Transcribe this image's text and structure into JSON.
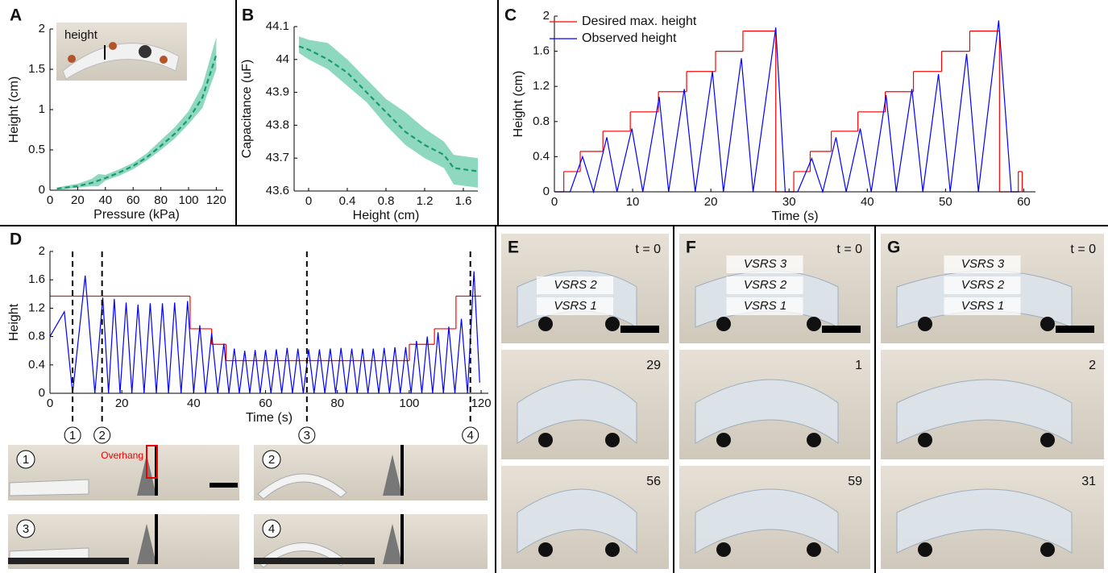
{
  "chart_data": [
    {
      "type": "line",
      "panel": "A",
      "xlabel": "Pressure (kPa)",
      "ylabel": "Height (cm)",
      "inset_label": "height",
      "xlim": [
        0,
        125
      ],
      "xticks": [
        0,
        20,
        40,
        60,
        80,
        100,
        120
      ],
      "ylim": [
        0,
        2
      ],
      "yticks": [
        0,
        0.5,
        1,
        1.5,
        2
      ],
      "x": [
        5,
        10,
        20,
        30,
        35,
        40,
        50,
        60,
        70,
        80,
        90,
        100,
        110,
        120
      ],
      "series": [
        {
          "color": "#1a9a6c",
          "dash": true,
          "values": [
            0.02,
            0.03,
            0.05,
            0.09,
            0.12,
            0.15,
            0.22,
            0.3,
            0.41,
            0.55,
            0.7,
            0.88,
            1.15,
            1.68
          ]
        }
      ],
      "band": {
        "color": "#8fd8c0",
        "lower": [
          0.01,
          0.01,
          0.03,
          0.05,
          0.05,
          0.12,
          0.18,
          0.26,
          0.37,
          0.5,
          0.64,
          0.82,
          1.02,
          1.5
        ],
        "upper": [
          0.03,
          0.05,
          0.08,
          0.14,
          0.2,
          0.19,
          0.26,
          0.34,
          0.46,
          0.62,
          0.78,
          0.98,
          1.3,
          1.9
        ]
      }
    },
    {
      "type": "line",
      "panel": "B",
      "xlabel": "Height (cm)",
      "ylabel": "Capacitance (uF)",
      "xlim": [
        -0.15,
        1.75
      ],
      "xticks": [
        0,
        0.4,
        0.8,
        1.2,
        1.6
      ],
      "ylim": [
        43.6,
        44.1
      ],
      "yticks": [
        43.6,
        43.7,
        43.8,
        43.9,
        44,
        44.1
      ],
      "x": [
        -0.1,
        0,
        0.2,
        0.4,
        0.6,
        0.8,
        1.0,
        1.2,
        1.4,
        1.5,
        1.75
      ],
      "series": [
        {
          "color": "#1a9a6c",
          "dash": true,
          "values": [
            44.04,
            44.03,
            44.0,
            43.96,
            43.9,
            43.84,
            43.78,
            43.74,
            43.71,
            43.67,
            43.66
          ]
        }
      ],
      "band": {
        "color": "#8fd8c0",
        "lower": [
          44.02,
          44.0,
          43.97,
          43.92,
          43.87,
          43.8,
          43.74,
          43.7,
          43.67,
          43.62,
          43.61
        ],
        "upper": [
          44.07,
          44.06,
          44.05,
          44.0,
          43.94,
          43.88,
          43.84,
          43.79,
          43.75,
          43.71,
          43.7
        ]
      }
    },
    {
      "type": "line",
      "panel": "C",
      "xlabel": "Time (s)",
      "ylabel": "Height (cm)",
      "legend": "upper left",
      "xlim": [
        0,
        61.5
      ],
      "xticks": [
        0,
        10,
        20,
        30,
        40,
        50,
        60
      ],
      "ylim": [
        0,
        2
      ],
      "yticks": [
        0,
        0.4,
        0.8,
        1.2,
        1.6,
        2
      ],
      "series": [
        {
          "name": "Desired max. height",
          "color": "#ff0000",
          "step": true,
          "x": [
            0,
            1.2,
            3.3,
            6.2,
            9.7,
            13.3,
            16.9,
            20.6,
            24.1,
            28.3,
            30.6,
            32.7,
            35.4,
            38.8,
            42.3,
            45.9,
            49.5,
            53.1,
            56.9,
            59.3,
            59.8
          ],
          "values": [
            0,
            0.23,
            0.46,
            0.69,
            0.91,
            1.14,
            1.37,
            1.6,
            1.83,
            0,
            0.23,
            0.46,
            0.69,
            0.91,
            1.14,
            1.37,
            1.6,
            1.83,
            0,
            0.23,
            0
          ]
        },
        {
          "name": "Observed height",
          "color": "#0000ff",
          "x": [
            0,
            2.0,
            3.6,
            5.0,
            6.7,
            8.0,
            9.9,
            11.3,
            13.4,
            14.6,
            16.6,
            18.0,
            20.2,
            21.6,
            23.9,
            25.4,
            28.3,
            29.5,
            31.1,
            32.9,
            34.3,
            36.0,
            37.3,
            39.1,
            40.5,
            42.4,
            43.7,
            45.7,
            47.1,
            49.1,
            50.6,
            52.7,
            54.2,
            56.8,
            58.4,
            59.5
          ],
          "values": [
            0,
            0,
            0.4,
            0,
            0.62,
            0,
            0.72,
            0,
            1.08,
            0,
            1.17,
            0,
            1.37,
            0,
            1.52,
            0,
            1.87,
            0,
            0,
            0.38,
            0,
            0.62,
            0,
            0.72,
            0,
            1.1,
            0,
            1.17,
            0,
            1.34,
            0,
            1.57,
            0,
            1.95,
            0,
            0
          ]
        }
      ]
    },
    {
      "type": "line",
      "panel": "D",
      "xlabel": "Time (s)",
      "ylabel": "Height",
      "xlim": [
        0,
        122
      ],
      "xticks": [
        0,
        20,
        40,
        60,
        80,
        100,
        120
      ],
      "ylim": [
        0,
        2
      ],
      "yticks": [
        0,
        0.4,
        0.8,
        1.2,
        1.6,
        2
      ],
      "series": [
        {
          "color": "#ff0000",
          "step": true,
          "x": [
            0,
            39,
            45,
            49,
            100,
            107,
            113,
            120
          ],
          "values": [
            1.37,
            0.91,
            0.69,
            0.46,
            0.69,
            0.91,
            1.37,
            1.37
          ]
        },
        {
          "color": "#0000ff",
          "x": [
            0,
            4.0,
            6.3,
            9.8,
            12.5,
            14.7,
            16.3,
            17.9,
            19.5,
            21.2,
            22.8,
            24.5,
            26.2,
            27.9,
            29.6,
            31.3,
            33,
            34.7,
            36.5,
            38.3,
            40,
            41.7,
            43.3,
            45,
            46.7,
            48.4,
            49.8,
            51.3,
            52.7,
            54.2,
            55.6,
            57.1,
            58.5,
            60,
            61.5,
            63,
            64.5,
            66,
            67.5,
            69,
            70.5,
            72,
            73.5,
            75,
            76.5,
            78,
            79.5,
            81,
            82.5,
            84,
            85.5,
            87,
            88.5,
            90,
            91.5,
            93,
            94.5,
            96,
            97.5,
            99,
            100.5,
            102,
            103.5,
            105,
            106.5,
            108,
            109.5,
            111,
            112.7,
            114.5,
            116.2,
            118,
            119.6
          ],
          "values": [
            0.8,
            1.15,
            0,
            1.66,
            0,
            1.35,
            0,
            1.33,
            0,
            1.28,
            0,
            1.25,
            0,
            1.27,
            0,
            1.27,
            0,
            1.28,
            0,
            1.3,
            0,
            0.96,
            0,
            0.85,
            0,
            0.7,
            0,
            0.63,
            0,
            0.6,
            0,
            0.61,
            0,
            0.61,
            0,
            0.62,
            0,
            0.64,
            0,
            0.63,
            0,
            0.62,
            0,
            0.62,
            0,
            0.63,
            0,
            0.64,
            0,
            0.63,
            0,
            0.63,
            0,
            0.63,
            0,
            0.64,
            0,
            0.65,
            0,
            0.65,
            0,
            0.74,
            0,
            0.8,
            0,
            0.86,
            0,
            0.94,
            0,
            1.05,
            0,
            1.72,
            0.15
          ]
        }
      ],
      "markers": [
        {
          "x": 6.3,
          "label": "1"
        },
        {
          "x": 14.5,
          "label": "2"
        },
        {
          "x": 71.5,
          "label": "3"
        },
        {
          "x": 117,
          "label": "4"
        }
      ]
    }
  ],
  "photos": {
    "D": [
      {
        "label": "1",
        "note": "Overhang"
      },
      {
        "label": "2"
      },
      {
        "label": "3"
      },
      {
        "label": "4"
      }
    ],
    "panels": [
      {
        "letter": "E",
        "frames": [
          {
            "label": "t = 0",
            "tags": [
              "VSRS 2",
              "VSRS 1"
            ]
          },
          {
            "label": "29"
          },
          {
            "label": "56"
          }
        ]
      },
      {
        "letter": "F",
        "frames": [
          {
            "label": "t = 0",
            "tags": [
              "VSRS 3",
              "VSRS 2",
              "VSRS 1"
            ]
          },
          {
            "label": "1"
          },
          {
            "label": "59"
          }
        ]
      },
      {
        "letter": "G",
        "frames": [
          {
            "label": "t = 0",
            "tags": [
              "VSRS 3",
              "VSRS 2",
              "VSRS 1"
            ]
          },
          {
            "label": "2"
          },
          {
            "label": "31"
          }
        ]
      }
    ]
  }
}
